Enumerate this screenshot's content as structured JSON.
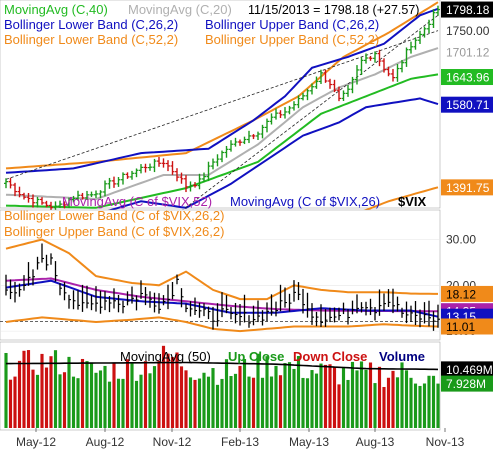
{
  "colors": {
    "up": "#1a9a1a",
    "down": "#cc1111",
    "ma40": "#22bb22",
    "ma20": "#b0b0b0",
    "bb26": "#1010c0",
    "bb52": "#f08a1a",
    "vix_ma52": "#aa22aa",
    "vix_ma26": "#1010c0",
    "vix_bb": "#f08a1a",
    "volume_ma": "#000000",
    "volume_label": "#000080",
    "price_tag": "#000000"
  },
  "chart_data": {
    "type": "line",
    "x_ticks": [
      "May-12",
      "Aug-12",
      "Nov-12",
      "Feb-13",
      "May-13",
      "Aug-13",
      "Nov-13"
    ],
    "price_panel": {
      "header": "11/15/2013 = 1798.18 (+27.57)",
      "legend": [
        {
          "text": "MovingAvg (C,40)",
          "color": "#22bb22"
        },
        {
          "text": "MovingAvg (C,20)",
          "color": "#b0b0b0"
        },
        {
          "text": "Bollinger Lower Band (C,26,2)",
          "color": "#1010c0"
        },
        {
          "text": "Bollinger Upper Band (C,26,2)",
          "color": "#1010c0"
        },
        {
          "text": "Bollinger Lower Band (C,52,2)",
          "color": "#f08a1a"
        },
        {
          "text": "Bollinger Upper Band (C,52,2)",
          "color": "#f08a1a"
        }
      ],
      "y_ticks": [
        1750,
        1701.12
      ],
      "ylim": [
        1340,
        1820
      ],
      "tags": [
        {
          "text": "1798.18",
          "value": 1798.18,
          "bg": "#000000",
          "fg": "#ffffff"
        },
        {
          "text": "1750.00",
          "value": 1750,
          "bg": null,
          "fg": "#333333"
        },
        {
          "text": "1701.12",
          "value": 1701.12,
          "bg": null,
          "fg": "#999999"
        },
        {
          "text": "1643.96",
          "value": 1643.96,
          "bg": "#22bb22",
          "fg": "#ffffff"
        },
        {
          "text": "1580.71",
          "value": 1580.71,
          "bg": "#1010c0",
          "fg": "#ffffff"
        },
        {
          "text": "1391.75",
          "value": 1391.75,
          "bg": "#f08a1a",
          "fg": "#ffffff"
        }
      ],
      "close_anchors": [
        [
          0,
          1405
        ],
        [
          4,
          1370
        ],
        [
          8,
          1355
        ],
        [
          11,
          1345
        ],
        [
          15,
          1370
        ],
        [
          19,
          1375
        ],
        [
          23,
          1400
        ],
        [
          27,
          1420
        ],
        [
          31,
          1440
        ],
        [
          35,
          1450
        ],
        [
          38,
          1420
        ],
        [
          40,
          1395
        ],
        [
          43,
          1405
        ],
        [
          46,
          1450
        ],
        [
          49,
          1480
        ],
        [
          52,
          1500
        ],
        [
          56,
          1520
        ],
        [
          59,
          1550
        ],
        [
          62,
          1565
        ],
        [
          65,
          1590
        ],
        [
          68,
          1625
        ],
        [
          70,
          1650
        ],
        [
          72,
          1630
        ],
        [
          74,
          1590
        ],
        [
          76,
          1610
        ],
        [
          79,
          1680
        ],
        [
          82,
          1700
        ],
        [
          84,
          1665
        ],
        [
          86,
          1640
        ],
        [
          88,
          1680
        ],
        [
          90,
          1720
        ],
        [
          92,
          1740
        ],
        [
          94,
          1770
        ],
        [
          96,
          1798.18
        ]
      ],
      "ma40_anchors": [
        [
          0,
          1350
        ],
        [
          20,
          1345
        ],
        [
          40,
          1390
        ],
        [
          56,
          1450
        ],
        [
          70,
          1560
        ],
        [
          80,
          1600
        ],
        [
          90,
          1640
        ],
        [
          96,
          1650
        ]
      ],
      "ma20_anchors": [
        [
          0,
          1375
        ],
        [
          20,
          1365
        ],
        [
          35,
          1420
        ],
        [
          45,
          1420
        ],
        [
          56,
          1490
        ],
        [
          66,
          1575
        ],
        [
          74,
          1620
        ],
        [
          82,
          1650
        ],
        [
          90,
          1690
        ],
        [
          96,
          1710
        ]
      ],
      "bb26_upper_anchors": [
        [
          0,
          1425
        ],
        [
          15,
          1435
        ],
        [
          30,
          1470
        ],
        [
          45,
          1480
        ],
        [
          55,
          1545
        ],
        [
          62,
          1600
        ],
        [
          68,
          1665
        ],
        [
          76,
          1690
        ],
        [
          84,
          1720
        ],
        [
          92,
          1785
        ],
        [
          96,
          1800
        ]
      ],
      "bb26_lower_anchors": [
        [
          0,
          1335
        ],
        [
          15,
          1315
        ],
        [
          30,
          1360
        ],
        [
          40,
          1345
        ],
        [
          50,
          1400
        ],
        [
          58,
          1455
        ],
        [
          66,
          1510
        ],
        [
          74,
          1540
        ],
        [
          80,
          1575
        ],
        [
          86,
          1585
        ],
        [
          92,
          1595
        ],
        [
          96,
          1582
        ]
      ],
      "bb52_upper_anchors": [
        [
          0,
          1435
        ],
        [
          20,
          1450
        ],
        [
          40,
          1470
        ],
        [
          55,
          1545
        ],
        [
          65,
          1600
        ],
        [
          75,
          1690
        ],
        [
          85,
          1745
        ],
        [
          96,
          1815
        ]
      ],
      "bb52_lower_anchors": [
        [
          0,
          1300
        ],
        [
          20,
          1280
        ],
        [
          40,
          1270
        ],
        [
          55,
          1290
        ],
        [
          65,
          1300
        ],
        [
          75,
          1320
        ],
        [
          85,
          1360
        ],
        [
          96,
          1392
        ]
      ],
      "trendlines": [
        {
          "from": [
            0,
            1410
          ],
          "to": [
            96,
            1750
          ]
        },
        {
          "from": [
            38,
            1330
          ],
          "to": [
            96,
            1785
          ]
        }
      ]
    },
    "vix_panel": {
      "legend": [
        {
          "text": "MovingAvg (C of $VIX,52)",
          "color": "#aa22aa"
        },
        {
          "text": "MovingAvg (C of $VIX,26)",
          "color": "#1010c0"
        },
        {
          "text": "$VIX",
          "color": "#000000"
        },
        {
          "text": "Bollinger Lower Band (C of $VIX,26,2)",
          "color": "#f08a1a"
        },
        {
          "text": "Bollinger Upper Band (C of $VIX,26,2)",
          "color": "#f08a1a"
        }
      ],
      "y_ticks": [
        30,
        20,
        10
      ],
      "y_tick_labels": [
        "30.00",
        "20.00",
        "10.00"
      ],
      "ylim": [
        8.5,
        36
      ],
      "tags": [
        {
          "text": "18.12",
          "value": 18.12,
          "bg": "#f08a1a",
          "fg": "#000000"
        },
        {
          "text": "14.35",
          "value": 14.35,
          "bg": "#aa22aa",
          "fg": "#ffffff"
        },
        {
          "text": "13.15",
          "value": 13.15,
          "bg": "#1010c0",
          "fg": "#ffffff"
        },
        {
          "text": "11.01",
          "value": 11.01,
          "bg": "#f08a1a",
          "fg": "#000000"
        }
      ],
      "vix_anchors": [
        [
          0,
          20
        ],
        [
          3,
          18
        ],
        [
          6,
          22
        ],
        [
          8,
          26
        ],
        [
          10,
          25
        ],
        [
          12,
          20
        ],
        [
          14,
          18
        ],
        [
          17,
          15
        ],
        [
          20,
          16
        ],
        [
          23,
          17
        ],
        [
          26,
          16
        ],
        [
          28,
          17
        ],
        [
          30,
          18
        ],
        [
          32,
          17
        ],
        [
          34,
          16
        ],
        [
          36,
          17
        ],
        [
          38,
          21
        ],
        [
          40,
          16
        ],
        [
          43,
          14
        ],
        [
          46,
          13
        ],
        [
          48,
          14
        ],
        [
          50,
          13
        ],
        [
          53,
          13
        ],
        [
          56,
          13
        ],
        [
          58,
          14
        ],
        [
          60,
          15
        ],
        [
          62,
          16
        ],
        [
          64,
          18
        ],
        [
          66,
          17
        ],
        [
          68,
          14
        ],
        [
          70,
          13
        ],
        [
          73,
          13
        ],
        [
          76,
          14
        ],
        [
          78,
          16
        ],
        [
          80,
          16
        ],
        [
          82,
          15
        ],
        [
          84,
          17
        ],
        [
          86,
          16
        ],
        [
          88,
          14
        ],
        [
          90,
          13
        ],
        [
          92,
          13
        ],
        [
          94,
          13
        ],
        [
          96,
          12.6
        ]
      ],
      "ma52_anchors": [
        [
          0,
          21
        ],
        [
          10,
          21.5
        ],
        [
          20,
          19
        ],
        [
          30,
          17.5
        ],
        [
          40,
          16.5
        ],
        [
          50,
          15.5
        ],
        [
          60,
          14.8
        ],
        [
          70,
          14.5
        ],
        [
          80,
          14.4
        ],
        [
          96,
          14.35
        ]
      ],
      "ma26_anchors": [
        [
          0,
          19.5
        ],
        [
          10,
          21
        ],
        [
          20,
          17.5
        ],
        [
          30,
          16.5
        ],
        [
          40,
          16
        ],
        [
          50,
          14
        ],
        [
          60,
          14
        ],
        [
          70,
          15
        ],
        [
          80,
          14.5
        ],
        [
          90,
          14.5
        ],
        [
          96,
          13.15
        ]
      ],
      "bb_upper_anchors": [
        [
          0,
          28
        ],
        [
          8,
          30
        ],
        [
          14,
          27
        ],
        [
          20,
          22
        ],
        [
          28,
          20.5
        ],
        [
          34,
          20
        ],
        [
          40,
          23
        ],
        [
          46,
          19
        ],
        [
          52,
          17
        ],
        [
          58,
          17
        ],
        [
          64,
          20
        ],
        [
          70,
          19
        ],
        [
          76,
          18.5
        ],
        [
          84,
          18.5
        ],
        [
          90,
          18.2
        ],
        [
          96,
          18.12
        ]
      ],
      "bb_lower_anchors": [
        [
          0,
          12
        ],
        [
          8,
          13
        ],
        [
          14,
          12.5
        ],
        [
          20,
          12
        ],
        [
          28,
          12.5
        ],
        [
          34,
          13
        ],
        [
          40,
          12
        ],
        [
          46,
          10.5
        ],
        [
          52,
          10
        ],
        [
          58,
          10.5
        ],
        [
          64,
          11
        ],
        [
          70,
          11
        ],
        [
          76,
          11
        ],
        [
          84,
          11.5
        ],
        [
          90,
          11.2
        ],
        [
          96,
          11.01
        ]
      ],
      "reference_level": 12.1
    },
    "volume_panel": {
      "legend": [
        {
          "text": "MovingAvg (50)",
          "color": "#000000"
        },
        {
          "text": "Up Close",
          "color": "#1a9a1a"
        },
        {
          "text": "Down Close",
          "color": "#cc1111"
        },
        {
          "text": "Volume",
          "color": "#000080"
        }
      ],
      "ylim": [
        0,
        15
      ],
      "tags": [
        {
          "text": "10.469M",
          "value": 10.469,
          "bg": "#000000",
          "fg": "#ffffff"
        },
        {
          "text": "7.928M",
          "value": 7.928,
          "bg": "#1a9a1a",
          "fg": "#ffffff"
        }
      ],
      "ma50_anchors": [
        [
          0,
          11.5
        ],
        [
          20,
          11.6
        ],
        [
          40,
          11.7
        ],
        [
          60,
          11.4
        ],
        [
          80,
          10.6
        ],
        [
          96,
          10.469
        ]
      ],
      "volume_anchors": [
        [
          0,
          11
        ],
        [
          10,
          12
        ],
        [
          20,
          10
        ],
        [
          30,
          11
        ],
        [
          36,
          13
        ],
        [
          42,
          10.5
        ],
        [
          50,
          10
        ],
        [
          60,
          11.5
        ],
        [
          70,
          10
        ],
        [
          80,
          9.5
        ],
        [
          90,
          10
        ],
        [
          96,
          7.928
        ]
      ]
    }
  }
}
